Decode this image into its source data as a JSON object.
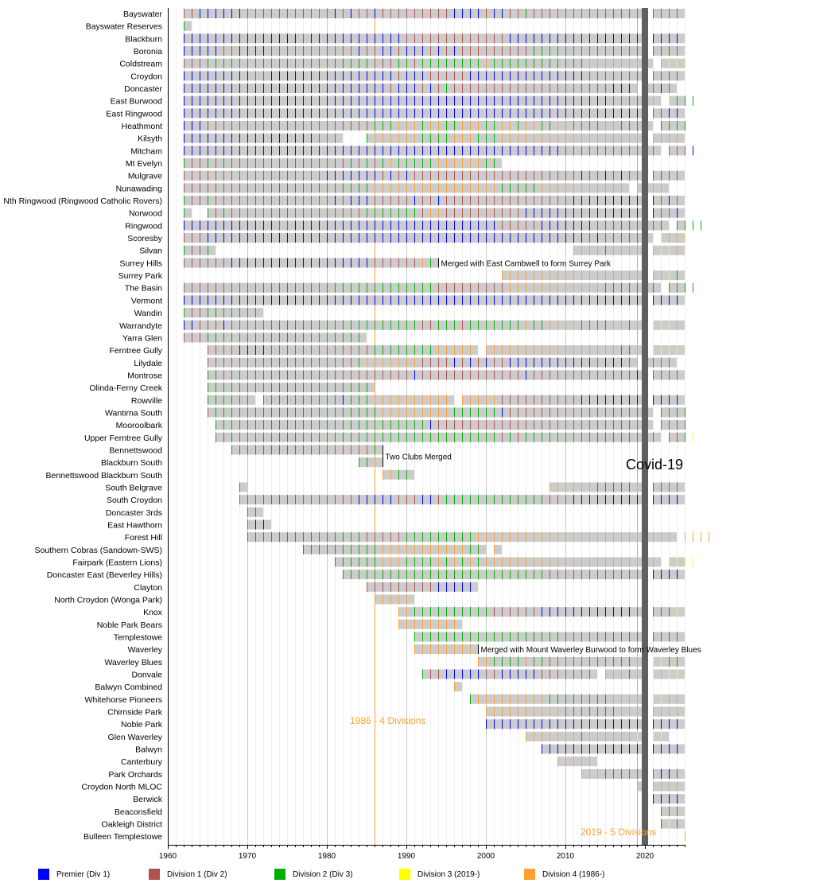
{
  "chart_data": {
    "type": "timeline",
    "title": "",
    "x_range": [
      1960,
      2025
    ],
    "x_ticks": [
      "1960",
      "1970",
      "1980",
      "1990",
      "2000",
      "2010",
      "2020"
    ],
    "grid": "vertical lines every year, darker every decade",
    "legend_placement": "bottom",
    "divisions": [
      {
        "code": "P",
        "label": "Premier (Div 1)",
        "color": "#0000ff"
      },
      {
        "code": "1",
        "label": "Division 1 (Div 2)",
        "color": "#b05050"
      },
      {
        "code": "2",
        "label": "Division 2 (Div 3)",
        "color": "#00b000"
      },
      {
        "code": "3",
        "label": "Division 3 (2019-)",
        "color": "#ffff00"
      },
      {
        "code": "4",
        "label": "Division 4 (1986-)",
        "color": "#ffa030"
      }
    ],
    "bar_color": "#cccccc",
    "clubs": [
      {
        "name": "Bayswater",
        "runs": [
          {
            "from": 1962,
            "divs": "11PPPPPP11111111111P1P11P111111111PPPP1PP11211111111111111.1111"
          }
        ]
      },
      {
        "name": "Bayswater Reserves",
        "runs": [
          {
            "from": 1962,
            "divs": "2"
          }
        ]
      },
      {
        "name": "Blackburn",
        "runs": [
          {
            "from": 1962,
            "divs": "PPPPPPPPPPPPPPP1PPPPPPPPPPPP1111111111111PPPPPPPPPPPPPPPPP.PPPP"
          }
        ]
      },
      {
        "name": "Boronia",
        "runs": [
          {
            "from": 1962,
            "divs": "PPPPP11PPPP22122111111P11PP1PPP1P1P11111111122222112212212.2221"
          }
        ]
      },
      {
        "name": "Coldstream",
        "runs": [
          {
            "from": 1962,
            "divs": "11122222222112122122222211122122222222422222222222244444444.4333"
          }
        ]
      },
      {
        "name": "Croydon",
        "runs": [
          {
            "from": 1962,
            "divs": "PPPPPPPPP11PPPPPPPPPPPPPPPP1PPP11111PPPPPPPPPPPPPPP1111111.1122"
          }
        ]
      },
      {
        "name": "Doncaster",
        "runs": [
          {
            "from": 1962,
            "divs": "PPPPPPPPPPPPPPPPPPPPPPPPPP1PPP1P1211111111111111212211PPP.P1P1"
          }
        ]
      },
      {
        "name": "East Burwood",
        "runs": [
          {
            "from": 1962,
            "divs": "PPPPPPPPPPPPPPPPPPPPPPPPPPPPPPPPPPPPPPPPPPPPPPPPPPPPPP111244.3222"
          }
        ]
      },
      {
        "name": "East Ringwood",
        "runs": [
          {
            "from": 1962,
            "divs": "PPPPPPPPPPPPPPPPPPPPPPPPPPPPPPPPPPPPPPPPPPPPPPPPPPPPPPPPPP.11PP"
          }
        ]
      },
      {
        "name": "Heathmont",
        "runs": [
          {
            "from": 1962,
            "divs": "PPP11111111111111111111122244424422444224424422442222442222.2222"
          }
        ]
      },
      {
        "name": "Kilsyth",
        "runs": [
          {
            "from": 1962,
            "divs": "PPPPPPPPPPPPPPPPP111...24444442222444222444444444444444444.4444"
          }
        ]
      },
      {
        "name": "Mitcham",
        "runs": [
          {
            "from": 1962,
            "divs": "PPPPPPPPPPPPPPPPPPPPPPPPPPPPPPPPPPPPPPPPPPPPPPPP222222111111.111P"
          }
        ]
      },
      {
        "name": "Mt Evelyn",
        "runs": [
          {
            "from": 1962,
            "divs": "2112121212121212121212121242222244444442"
          },
          {
            "from": 2000,
            "divs": "22"
          }
        ]
      },
      {
        "name": "Mulgrave",
        "runs": [
          {
            "from": 1962,
            "divs": "111111111111111111PPPPPPP1P1P111111111111111111111P11P1P11.2222"
          }
        ]
      },
      {
        "name": "Nunawading",
        "runs": [
          {
            "from": 1962,
            "divs": "11111111111122222222222244444444444444442222244444444444.4444"
          }
        ]
      },
      {
        "name": "Nth Ringwood (Ringwood Catholic Rovers)",
        "runs": [
          {
            "from": 1962,
            "divs": "2112111111111111111P1PPP11111P11P1111111111111111PPPPPPPPP.P1P1"
          }
        ]
      },
      {
        "name": "Norwood",
        "runs": [
          {
            "from": 1962,
            "divs": "2"
          },
          {
            "from": 1965,
            "divs": "2121111111111111111122222221441111111111PPPPPPPPPPPPPPP.P11P"
          }
        ]
      },
      {
        "name": "Ringwood",
        "runs": [
          {
            "from": 1962,
            "divs": "PPPPPPPPPPPP11PPPPPPPPPPPPPPPPPPPPPPPPPP11111PPPPPPP222222222.2222"
          }
        ]
      },
      {
        "name": "Scoresby",
        "runs": [
          {
            "from": 1962,
            "divs": "111PPPPPPPPPPPPPPPPPPPPPPPPPPPPPPPPPPPPPPPPPPPPPPPP1P122222.3443"
          }
        ]
      },
      {
        "name": "Silvan",
        "runs": [
          {
            "from": 1962,
            "divs": "2112"
          },
          {
            "from": 2011,
            "divs": "444424444.4334"
          }
        ]
      },
      {
        "name": "Surrey Hills",
        "runs": [
          {
            "from": 1962,
            "divs": "111111PPPPPPPPPPPPPPPPPP11111142"
          }
        ]
      },
      {
        "name": "Surrey Park",
        "runs": [
          {
            "from": 2002,
            "divs": "444444444444444444.4432"
          }
        ]
      },
      {
        "name": "The Basin",
        "runs": [
          {
            "from": 1962,
            "divs": "111111222222222222222222222222221111111114444444444442222222.2222"
          }
        ]
      },
      {
        "name": "Vermont",
        "runs": [
          {
            "from": 1962,
            "divs": "PPPPPPPPPPPPPPPPPPPPPPPPPPPPPPPPPPPPPPPPPPPPPPPPPPPPPPPPPP.PPPP"
          }
        ]
      },
      {
        "name": "Wandin",
        "runs": [
          {
            "from": 1962,
            "divs": "2112222222"
          }
        ]
      },
      {
        "name": "Warrandyte",
        "runs": [
          {
            "from": 1962,
            "divs": "PP111P1111112222222222222222221122212222222422444422224424.3334"
          }
        ]
      },
      {
        "name": "Yarra Glen",
        "runs": [
          {
            "from": 1962,
            "divs": "11122222222222222222222"
          }
        ]
      },
      {
        "name": "Ferntree Gully",
        "runs": [
          {
            "from": 1965,
            "divs": "1111PPPP11111111111112222222244444.44444444444444444224.3333"
          }
        ]
      },
      {
        "name": "Lilydale",
        "runs": [
          {
            "from": 1965,
            "divs": "1111111111111111111244444441111P1P1P11PPPPPPPPPPP1PPP1.1112"
          }
        ]
      },
      {
        "name": "Montrose",
        "runs": [
          {
            "from": 1965,
            "divs": "22122222222222222111111111P1111111111111P1111111111111P.1111"
          }
        ]
      },
      {
        "name": "Olinda-Ferny Creek",
        "runs": [
          {
            "from": 1965,
            "divs": "222222212222222222222"
          }
        ]
      },
      {
        "name": "Rowville",
        "runs": [
          {
            "from": 1965,
            "divs": "222222.2222222222P2224444444444.444441111111111PPPPPPPP.PPPP"
          }
        ]
      },
      {
        "name": "Wantirna South",
        "runs": [
          {
            "from": 1965,
            "divs": "1222222222222222222222444444444222222P111111111111111111.1122"
          }
        ]
      },
      {
        "name": "Mooroolbark",
        "runs": [
          {
            "from": 1966,
            "divs": "222222222222222222222222222P111111111111111111111111111.1111"
          }
        ]
      },
      {
        "name": "Upper Ferntree Gully",
        "runs": [
          {
            "from": 1966,
            "divs": "11211121212122222222222222222222222212122222222222121222.1123"
          }
        ]
      },
      {
        "name": "Bennettswood",
        "runs": [
          {
            "from": 1968,
            "divs": "2222222222222111112"
          }
        ]
      },
      {
        "name": "Blackburn South",
        "runs": [
          {
            "from": 1984,
            "divs": "224"
          }
        ]
      },
      {
        "name": "Bennettswood Blackburn South",
        "runs": [
          {
            "from": 1987,
            "divs": "4422"
          }
        ]
      },
      {
        "name": "South Belgrave",
        "runs": [
          {
            "from": 1969,
            "divs": "2"
          },
          {
            "from": 2008,
            "divs": "444444222224.2211"
          }
        ]
      },
      {
        "name": "South Croydon",
        "runs": [
          {
            "from": 1969,
            "divs": "222221111111111PPPPP111PP12222222222222111PPPPPPPPP.PPPP"
          }
        ]
      },
      {
        "name": "Doncaster 3rds",
        "runs": [
          {
            "from": 1970,
            "divs": "22"
          }
        ]
      },
      {
        "name": "East Hawthorn",
        "runs": [
          {
            "from": 1970,
            "divs": "1PP"
          }
        ]
      },
      {
        "name": "Forest Hill",
        "runs": [
          {
            "from": 1970,
            "divs": "222222222222222111112222222224444444444444444444444444.4444"
          }
        ]
      },
      {
        "name": "Southern Cobras (Sandown-SWS)",
        "runs": [
          {
            "from": 1977,
            "divs": "22222222224444444444422.4"
          }
        ]
      },
      {
        "name": "Fairpark (Eastern Lions)",
        "runs": [
          {
            "from": 1981,
            "divs": "22222244422224242424444444444444444444444.3333"
          }
        ]
      },
      {
        "name": "Doncaster East (Beverley Hills)",
        "runs": [
          {
            "from": 1982,
            "divs": "22222222222222222222222222111111111111.PPPP"
          }
        ]
      },
      {
        "name": "Clayton",
        "runs": [
          {
            "from": 1985,
            "divs": "111111111PPPPP"
          }
        ]
      },
      {
        "name": "North Croydon (Wonga Park)",
        "runs": [
          {
            "from": 1986,
            "divs": "44444"
          }
        ]
      },
      {
        "name": "Knox",
        "runs": [
          {
            "from": 1989,
            "divs": "442222222222111111PPPPPPPPPPPP2.2223"
          }
        ]
      },
      {
        "name": "Noble Park Bears",
        "runs": [
          {
            "from": 1989,
            "divs": "44444444"
          }
        ]
      },
      {
        "name": "Templestowe",
        "runs": [
          {
            "from": 1991,
            "divs": "22222222222222222222222222222.2222"
          }
        ]
      },
      {
        "name": "Waverley",
        "runs": [
          {
            "from": 1991,
            "divs": "44444444"
          }
        ]
      },
      {
        "name": "Waverley Blues",
        "runs": [
          {
            "from": 1999,
            "divs": "442222422111111111124.3322"
          }
        ]
      },
      {
        "name": "Donvale",
        "runs": [
          {
            "from": 1992,
            "divs": "211PPPPP11PPPPP1111111.44424.3433"
          }
        ]
      },
      {
        "name": "Balwyn Combined",
        "runs": [
          {
            "from": 1996,
            "divs": "4"
          }
        ]
      },
      {
        "name": "Whitehorse Pioneers",
        "runs": [
          {
            "from": 1998,
            "divs": "2444444444222222224444.3344"
          }
        ]
      },
      {
        "name": "Chirnside Park",
        "runs": [
          {
            "from": 2000,
            "divs": "44444444442222222444.4444"
          }
        ]
      },
      {
        "name": "Noble Park",
        "runs": [
          {
            "from": 2000,
            "divs": "PPPPPPPPPPPPPPPPPPPP.PPPP"
          }
        ]
      },
      {
        "name": "Glen Waverley",
        "runs": [
          {
            "from": 2005,
            "divs": "444444424444443.33"
          }
        ]
      },
      {
        "name": "Balwyn",
        "runs": [
          {
            "from": 2007,
            "divs": "PPPPPPPPPPPPP.PPPP"
          }
        ]
      },
      {
        "name": "Canterbury",
        "runs": [
          {
            "from": 2009,
            "divs": "44444"
          }
        ]
      },
      {
        "name": "Park Orchards",
        "runs": [
          {
            "from": 2012,
            "divs": "44422211.1PP1"
          }
        ]
      },
      {
        "name": "Croydon North MLOC",
        "runs": [
          {
            "from": 2019,
            "divs": "4.4444"
          }
        ]
      },
      {
        "name": "Berwick",
        "runs": [
          {
            "from": 2021,
            "divs": "PPPP"
          }
        ]
      },
      {
        "name": "Beaconsfield",
        "runs": [
          {
            "from": 2022,
            "divs": "111"
          }
        ]
      },
      {
        "name": "Oakleigh District",
        "runs": [
          {
            "from": 2022,
            "divs": "232"
          }
        ]
      },
      {
        "name": "Bulleen Templestowe",
        "runs": [
          {
            "from": 2025,
            "divs": "4"
          }
        ]
      }
    ],
    "annotations": {
      "four_divisions": {
        "year": 1986,
        "text": "1986 - 4 Divisions",
        "color": "#ffa030"
      },
      "five_divisions": {
        "year": 2019,
        "text": "2019 - 5 Divisions",
        "color": "#ffa030"
      },
      "covid": {
        "year": 2020,
        "text": "Covid-19",
        "color": "#606060"
      },
      "surrey_merge": {
        "club": "Surrey Hills",
        "year": 1994,
        "text": "Merged with East Cambwell to form Surrey Park"
      },
      "bennettswood_merge": {
        "club": "Bennettswood",
        "year": 1987,
        "text": "Two Clubs Merged"
      },
      "waverley_merge": {
        "club": "Waverley",
        "year": 1999,
        "text": "Merged with Mount Waverley Burwood to form Waverley Blues"
      }
    }
  }
}
